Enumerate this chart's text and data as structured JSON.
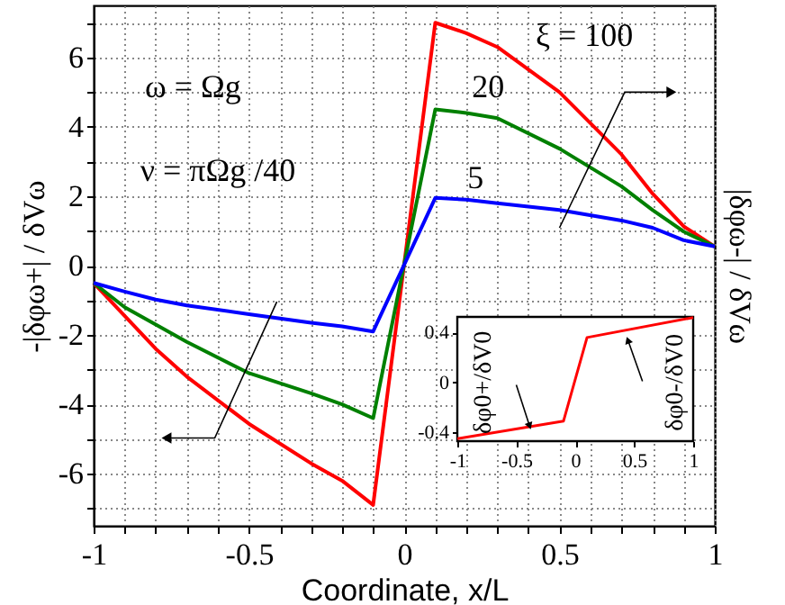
{
  "chart_data": [
    {
      "type": "line",
      "xlabel": "Coordinate, x/L",
      "ylabel": "-|δφω+| / δVω",
      "y2label": "|δφω-| / δVω",
      "x": [
        -1,
        -0.9,
        -0.8,
        -0.7,
        -0.5,
        -0.3,
        -0.2,
        -0.1,
        0.1,
        0.2,
        0.3,
        0.5,
        0.7,
        0.8,
        0.9,
        1
      ],
      "series": [
        {
          "name": "ξ = 100",
          "color": "#ff0000",
          "values": [
            -0.5,
            -1.45,
            -2.4,
            -3.2,
            -4.56,
            -5.7,
            -6.2,
            -6.9,
            7.0,
            6.7,
            6.3,
            5.0,
            3.2,
            2.07,
            1.13,
            0.55
          ]
        },
        {
          "name": "20",
          "color": "#008000",
          "values": [
            -0.5,
            -1.2,
            -1.7,
            -2.2,
            -3.1,
            -3.68,
            -4.0,
            -4.4,
            4.5,
            4.4,
            4.25,
            3.37,
            2.28,
            1.6,
            0.98,
            0.55
          ]
        },
        {
          "name": "5",
          "color": "#0000ff",
          "values": [
            -0.5,
            -0.75,
            -0.98,
            -1.15,
            -1.4,
            -1.65,
            -1.75,
            -1.9,
            1.95,
            1.9,
            1.8,
            1.6,
            1.3,
            1.09,
            0.73,
            0.55
          ]
        }
      ],
      "xlim": [
        -1,
        1
      ],
      "ylim": [
        -7.5,
        7.5
      ],
      "xticks": [
        -1,
        {
          "value": -0.9,
          "label": null
        },
        {
          "value": -0.8,
          "label": null
        },
        {
          "value": -0.7,
          "label": null
        },
        {
          "value": -0.6,
          "label": null
        },
        -0.5,
        {
          "value": -0.4,
          "label": null
        },
        {
          "value": -0.3,
          "label": null
        },
        {
          "value": -0.2,
          "label": null
        },
        {
          "value": -0.1,
          "label": null
        },
        0,
        {
          "value": 0.1,
          "label": null
        },
        {
          "value": 0.2,
          "label": null
        },
        {
          "value": 0.3,
          "label": null
        },
        {
          "value": 0.4,
          "label": null
        },
        0.5,
        {
          "value": 0.6,
          "label": null
        },
        {
          "value": 0.7,
          "label": null
        },
        {
          "value": 0.8,
          "label": null
        },
        {
          "value": 0.9,
          "label": null
        },
        1
      ],
      "yticks": [
        {
          "value": -7,
          "label": null
        },
        -6,
        {
          "value": -5,
          "label": null
        },
        -4,
        {
          "value": -3,
          "label": null
        },
        -2,
        {
          "value": -1,
          "label": null
        },
        0,
        {
          "value": 1,
          "label": null
        },
        2,
        {
          "value": 3,
          "label": null
        },
        4,
        {
          "value": 5,
          "label": null
        },
        6,
        {
          "value": 7,
          "label": null
        }
      ],
      "grid": true,
      "line_style": "solid",
      "annotations": [
        "ω = Ωg",
        "ν = πΩg /40"
      ]
    },
    {
      "type": "line",
      "x": [
        -1,
        -0.1,
        0.1,
        1
      ],
      "series": [
        {
          "color": "#ff0000",
          "values": [
            -0.45,
            -0.31,
            0.36,
            0.52
          ]
        }
      ],
      "xlim": [
        -1,
        1
      ],
      "ylim": [
        -0.47,
        0.525
      ],
      "xticks": [
        -1,
        -0.5,
        0,
        0.5,
        1
      ],
      "yticks": [
        -0.4,
        0,
        0.4
      ],
      "line_style": "solid",
      "annotations": [
        "δφ0+/δV0",
        "δφ0-/δV0"
      ]
    }
  ]
}
